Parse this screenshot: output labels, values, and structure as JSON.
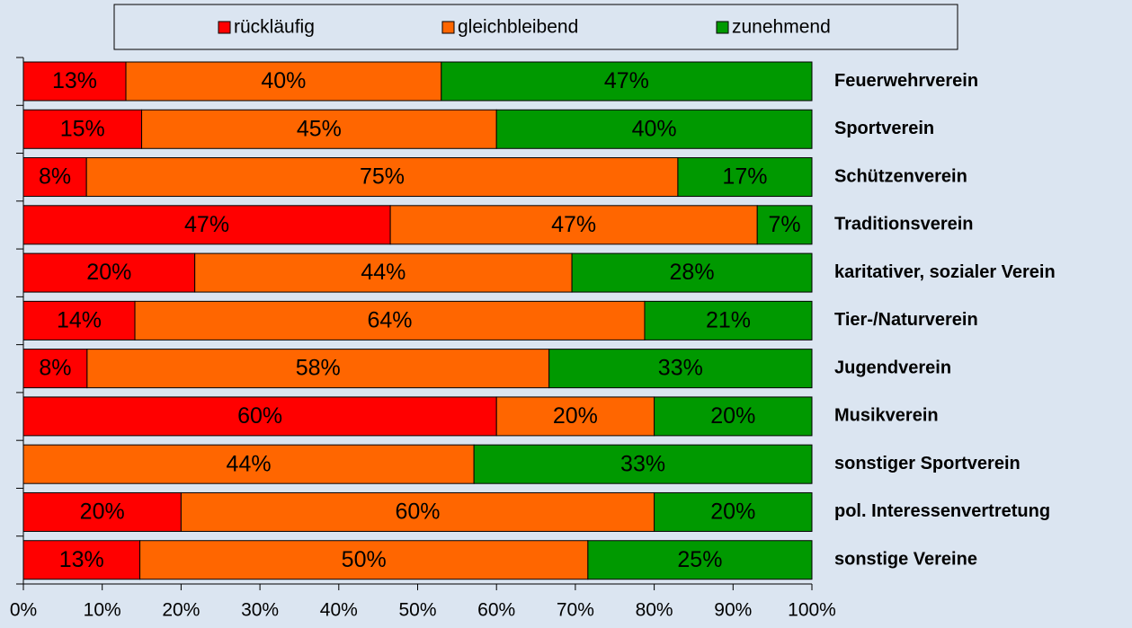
{
  "chart_data": {
    "type": "stacked-percent-bar",
    "categories": [
      "Feuerwehrverein",
      "Sportverein",
      "Schützenverein",
      "Traditionsverein",
      "karitativer, sozialer Verein",
      "Tier-/Naturverein",
      "Jugendverein",
      "Musikverein",
      "sonstiger Sportverein",
      "pol. Interessenvertretung",
      "sonstige Vereine"
    ],
    "series": [
      {
        "name": "rückläufig",
        "color": "#ff0000",
        "values": [
          13,
          15,
          8,
          47,
          20,
          14,
          8,
          60,
          0,
          20,
          13
        ],
        "value_labels": [
          "13%",
          "15%",
          "8%",
          "47%",
          "20%",
          "14%",
          "8%",
          "60%",
          null,
          "20%",
          "13%"
        ]
      },
      {
        "name": "gleichbleibend",
        "color": "#ff6600",
        "values": [
          40,
          45,
          75,
          47,
          44,
          64,
          58,
          20,
          44,
          60,
          50
        ],
        "value_labels": [
          "40%",
          "45%",
          "75%",
          "47%",
          "44%",
          "64%",
          "58%",
          "20%",
          "44%",
          "60%",
          "50%"
        ]
      },
      {
        "name": "zunehmend",
        "color": "#009900",
        "values": [
          47,
          40,
          17,
          7,
          28,
          21,
          33,
          20,
          33,
          20,
          25
        ],
        "value_labels": [
          "47%",
          "40%",
          "17%",
          "7%",
          "28%",
          "21%",
          "33%",
          "20%",
          "33%",
          "20%",
          "25%"
        ]
      }
    ],
    "xlim": [
      0,
      100
    ],
    "xticks": [
      {
        "value": 0,
        "label": "0%"
      },
      {
        "value": 10,
        "label": "10%"
      },
      {
        "value": 20,
        "label": "20%"
      },
      {
        "value": 30,
        "label": "30%"
      },
      {
        "value": 40,
        "label": "40%"
      },
      {
        "value": 50,
        "label": "50%"
      },
      {
        "value": 60,
        "label": "60%"
      },
      {
        "value": 70,
        "label": "70%"
      },
      {
        "value": 80,
        "label": "80%"
      },
      {
        "value": 90,
        "label": "90%"
      },
      {
        "value": 100,
        "label": "100%"
      }
    ],
    "legend": "top"
  }
}
